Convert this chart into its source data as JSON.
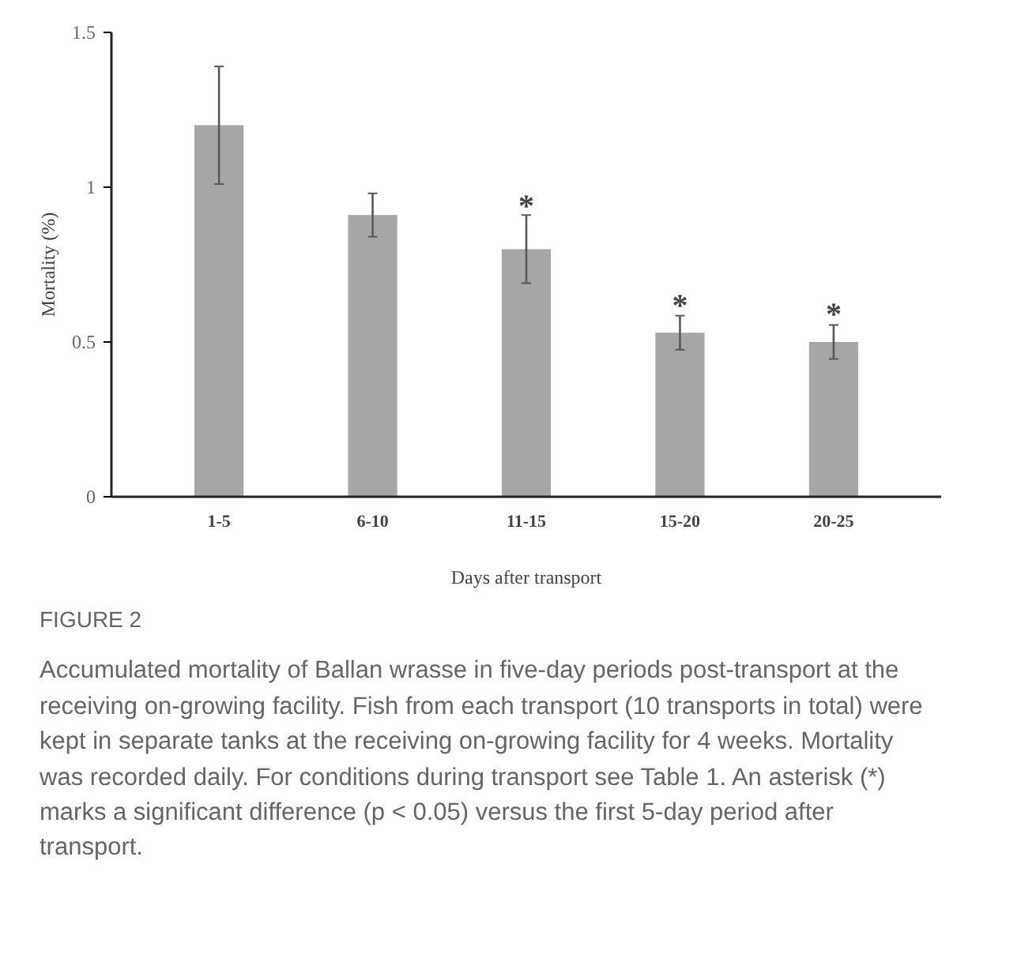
{
  "chart_data": {
    "type": "bar",
    "title": "FIGURE 2",
    "xlabel": "Days after transport",
    "ylabel": "Mortality (%)",
    "categories": [
      "1-5",
      "6-10",
      "11-15",
      "15-20",
      "20-25"
    ],
    "values": [
      1.2,
      0.91,
      0.8,
      0.53,
      0.5
    ],
    "errors": [
      0.19,
      0.07,
      0.11,
      0.055,
      0.055
    ],
    "color": "#a6a6a6",
    "ylim": [
      0,
      1.5
    ],
    "yticks": [
      0,
      0.5,
      1,
      1.5
    ],
    "grid": false,
    "annotations": [
      {
        "text": "*",
        "x": "11-15",
        "y": 0.91
      },
      {
        "text": "*",
        "x": "15-20",
        "y": 0.59
      },
      {
        "text": "*",
        "x": "20-25",
        "y": 0.56
      },
      "Accumulated mortality of Ballan wrasse in five-day periods post-transport at the receiving on-growing facility. Fish from each transport (10 transports in total) were kept in separate tanks at the receiving on-growing facility for 4 weeks. Mortality was recorded daily. For conditions during transport see Table 1. An asterisk (*) marks a significant difference (p < 0.05) versus the first 5-day period after transport."
    ]
  }
}
